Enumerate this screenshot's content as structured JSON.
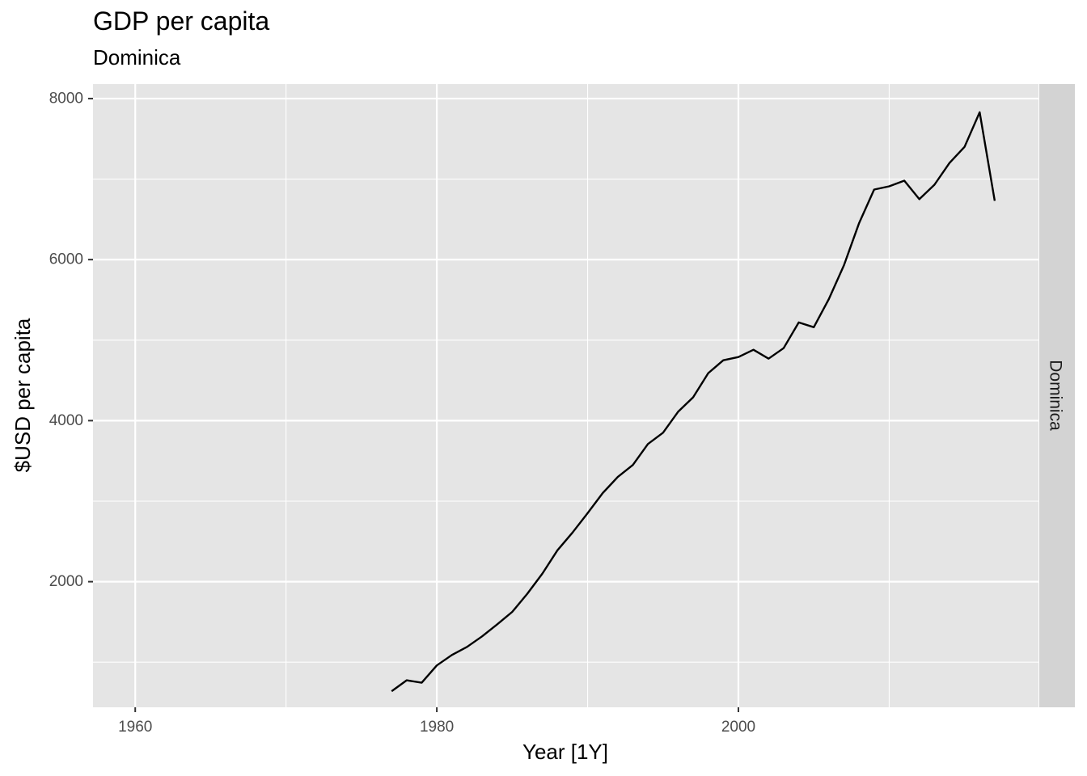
{
  "chart_data": {
    "type": "line",
    "title": "GDP per capita",
    "subtitle": "Dominica",
    "xlabel": "Year [1Y]",
    "ylabel": "$USD per capita",
    "facet_label": "Dominica",
    "xlim": [
      1957.2,
      2019.9
    ],
    "ylim": [
      440,
      8180
    ],
    "x_ticks": [
      1960,
      1980,
      2000
    ],
    "y_ticks": [
      2000,
      4000,
      6000,
      8000
    ],
    "grid": true,
    "colors": {
      "panel_background": "#e5e5e5",
      "grid_major": "#ffffff",
      "strip_background": "#d3d3d3",
      "line": "#000000"
    },
    "series": [
      {
        "x": [
          1977,
          1978,
          1979,
          1980,
          1981,
          1982,
          1983,
          1984,
          1985,
          1986,
          1987,
          1988,
          1989,
          1990,
          1991,
          1992,
          1993,
          1994,
          1995,
          1996,
          1997,
          1998,
          1999,
          2000,
          2001,
          2002,
          2003,
          2004,
          2005,
          2006,
          2007,
          2008,
          2009,
          2010,
          2011,
          2012,
          2013,
          2014,
          2015,
          2016,
          2017
        ],
        "values": [
          640,
          775,
          745,
          960,
          1090,
          1190,
          1320,
          1470,
          1625,
          1850,
          2100,
          2390,
          2610,
          2850,
          3100,
          3300,
          3450,
          3710,
          3850,
          4110,
          4290,
          4590,
          4750,
          4790,
          4880,
          4770,
          4900,
          5220,
          5160,
          5510,
          5930,
          6450,
          6870,
          6910,
          6980,
          6750,
          6930,
          7200,
          7400,
          7830,
          6730
        ]
      }
    ]
  }
}
